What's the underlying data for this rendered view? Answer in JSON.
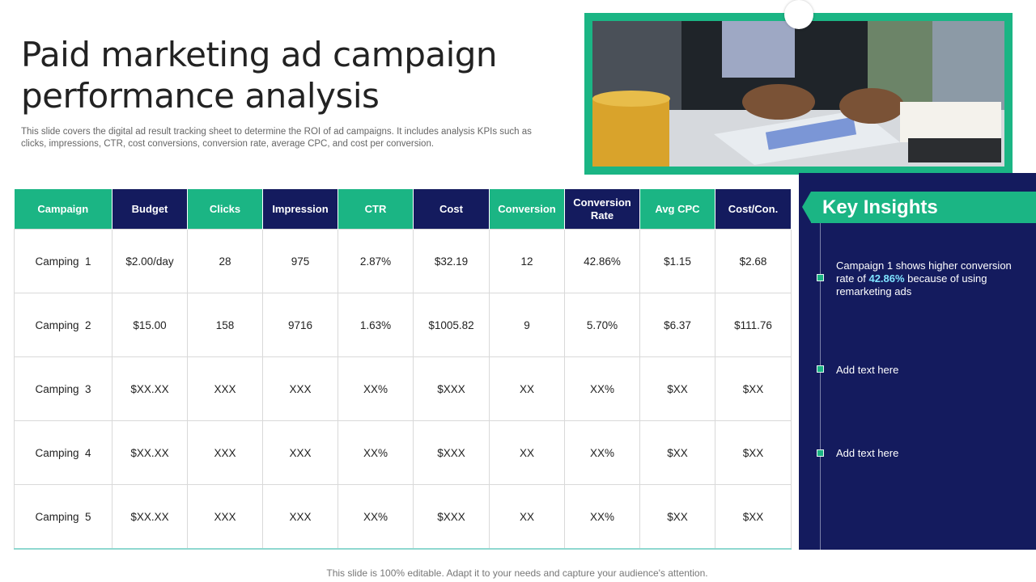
{
  "slide": {
    "title": "Paid marketing ad campaign performance analysis",
    "subtitle": "This slide covers the digital ad result tracking sheet to determine the ROI of ad campaigns. It includes analysis KPIs such as clicks, impressions, CTR, cost conversions, conversion rate, average CPC, and cost per conversion.",
    "footer": "This slide is 100% editable. Adapt it to your needs and capture your audience's attention."
  },
  "table": {
    "headers": [
      "Campaign",
      "Budget",
      "Clicks",
      "Impression",
      "CTR",
      "Cost",
      "Conversion",
      "Conversion Rate",
      "Avg CPC",
      "Cost/Con."
    ],
    "rows": [
      [
        "Camping  1",
        "$2.00/day",
        "28",
        "975",
        "2.87%",
        "$32.19",
        "12",
        "42.86%",
        "$1.15",
        "$2.68"
      ],
      [
        "Camping  2",
        "$15.00",
        "158",
        "9716",
        "1.63%",
        "$1005.82",
        "9",
        "5.70%",
        "$6.37",
        "$111.76"
      ],
      [
        "Camping  3",
        "$XX.XX",
        "XXX",
        "XXX",
        "XX%",
        "$XXX",
        "XX",
        "XX%",
        "$XX",
        "$XX"
      ],
      [
        "Camping  4",
        "$XX.XX",
        "XXX",
        "XXX",
        "XX%",
        "$XXX",
        "XX",
        "XX%",
        "$XX",
        "$XX"
      ],
      [
        "Camping  5",
        "$XX.XX",
        "XXX",
        "XXX",
        "XX%",
        "$XXX",
        "XX",
        "XX%",
        "$XX",
        "$XX"
      ]
    ]
  },
  "insights": {
    "title": "Key Insights",
    "item1": {
      "before": "Campaign  1 shows higher conversion  rate of ",
      "highlight": "42.86%",
      "after": "  because of using remarketing  ads"
    },
    "item2": "Add text here",
    "item3": "Add text here"
  },
  "colors": {
    "green": "#1bb584",
    "navy": "#141b5e",
    "highlight": "#7fe3ff"
  },
  "icons": {
    "insight_marker": "square-bullet-icon"
  }
}
